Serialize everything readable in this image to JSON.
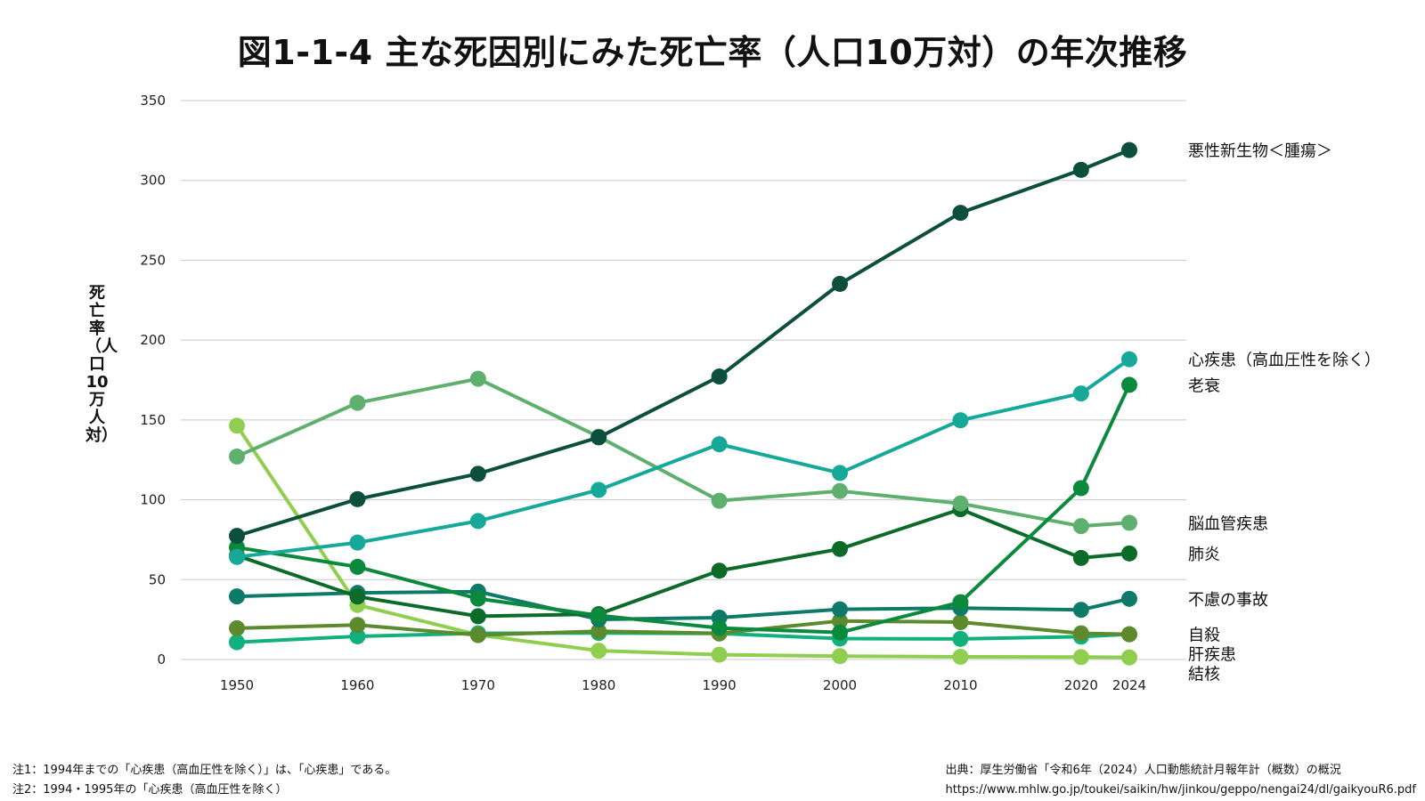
{
  "title": "図1-1-4 主な死因別にみた死亡率（人口10万対）の年次推移",
  "notes": [
    "注1：1994年までの「心疾患（高血圧性を除く）」は、「心疾患」である。",
    "注2：1994・1995年の「心疾患（高血圧性を除く）"
  ],
  "source": {
    "line1": "出典：厚生労働省「令和6年（2024）人口動態統計月報年計（概数）の概況",
    "line2": "https://www.mhlw.go.jp/toukei/saikin/hw/jinkou/geppo/nengai24/dl/gaikyouR6.pdf"
  },
  "chart_data": {
    "type": "line",
    "title": "図1-1-4 主な死因別にみた死亡率（人口10万対）の年次推移",
    "xlabel": "",
    "ylabel": "死亡率（人口10万人対）",
    "x": [
      "1950",
      "1960",
      "1970",
      "1980",
      "1990",
      "2000",
      "2010",
      "2020",
      "2024"
    ],
    "ylim": [
      0,
      350
    ],
    "yticks": [
      0,
      50,
      100,
      150,
      200,
      250,
      300,
      350
    ],
    "grid": true,
    "legend": "right-end-labels",
    "series": [
      {
        "name": "悪性新生物＜腫瘍＞",
        "color": "#0b4f3c",
        "values": [
          77.4,
          100.4,
          116.3,
          139.1,
          177.2,
          235.2,
          279.7,
          306.6,
          319.0
        ]
      },
      {
        "name": "心疾患（高血圧性を除く）",
        "color": "#16a99a",
        "values": [
          64.2,
          73.2,
          86.7,
          106.2,
          134.8,
          116.8,
          149.8,
          166.6,
          188.0
        ]
      },
      {
        "name": "老衰",
        "color": "#0b8a3e",
        "values": [
          70.2,
          58.0,
          38.1,
          27.6,
          19.7,
          16.9,
          35.9,
          107.3,
          172.0
        ]
      },
      {
        "name": "脳血管疾患",
        "color": "#5faf6e",
        "values": [
          127.1,
          160.7,
          175.8,
          139.5,
          99.4,
          105.5,
          97.7,
          83.5,
          85.6
        ]
      },
      {
        "name": "肺炎",
        "color": "#0d6b2a",
        "values": [
          65.1,
          39.4,
          27.1,
          28.4,
          55.6,
          69.2,
          94.1,
          63.6,
          66.4
        ]
      },
      {
        "name": "不慮の事故",
        "color": "#0e7a68",
        "values": [
          39.5,
          41.7,
          42.5,
          25.1,
          26.2,
          31.4,
          32.2,
          31.1,
          38.0
        ]
      },
      {
        "name": "自殺",
        "color": "#5c8a2c",
        "values": [
          19.6,
          21.6,
          15.3,
          17.7,
          16.4,
          24.1,
          23.4,
          16.4,
          15.8
        ]
      },
      {
        "name": "肝疾患",
        "color": "#12b07c",
        "values": [
          10.8,
          14.5,
          16.4,
          16.6,
          16.3,
          13.1,
          12.9,
          14.3,
          15.8
        ]
      },
      {
        "name": "結核",
        "color": "#8fce4f",
        "values": [
          146.4,
          34.2,
          15.4,
          5.5,
          3.0,
          2.1,
          1.7,
          1.5,
          1.3
        ]
      }
    ]
  }
}
